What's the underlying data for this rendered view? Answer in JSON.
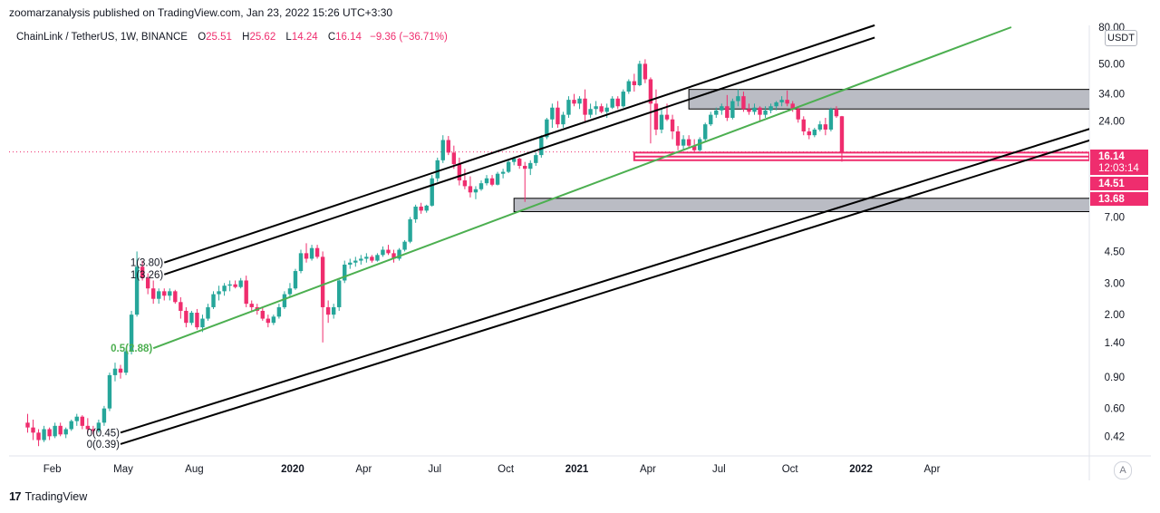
{
  "header": {
    "published": "zoomarzanalysis published on TradingView.com, Jan 23, 2022 15:26 UTC+3:30"
  },
  "legend": {
    "symbol": "ChainLink / TetherUS, 1W, BINANCE",
    "o_label": "O",
    "o_value": "25.51",
    "h_label": "H",
    "h_value": "25.62",
    "l_label": "L",
    "l_value": "14.24",
    "c_label": "C",
    "c_value": "16.14",
    "change": "−9.36 (−36.71%)"
  },
  "currency": "USDT",
  "footer": {
    "logo": "17",
    "brand": "TradingView"
  },
  "autoscale_label": "A",
  "colors": {
    "up": "#26a69a",
    "down": "#ef2d6e",
    "trend": "#4caf50",
    "channel": "#000000",
    "zone": "#b2b5be",
    "support": "#ef2d6e"
  },
  "chart_data": {
    "type": "candlestick",
    "scale": "log",
    "title": "ChainLink / TetherUS, 1W, BINANCE",
    "ylim": [
      0.35,
      80
    ],
    "y_ticks": [
      "0.42",
      "0.60",
      "0.90",
      "1.40",
      "2.00",
      "3.00",
      "4.50",
      "7.00",
      "24.00",
      "34.00",
      "50.00",
      "80.00"
    ],
    "x_ticks": [
      {
        "label": "Feb",
        "t": 4.5,
        "bold": false
      },
      {
        "label": "May",
        "t": 17.5,
        "bold": false
      },
      {
        "label": "Aug",
        "t": 30.5,
        "bold": false
      },
      {
        "label": "2020",
        "t": 48.5,
        "bold": true
      },
      {
        "label": "Apr",
        "t": 61.5,
        "bold": false
      },
      {
        "label": "Jul",
        "t": 74.5,
        "bold": false
      },
      {
        "label": "Oct",
        "t": 87.5,
        "bold": false
      },
      {
        "label": "2021",
        "t": 100.5,
        "bold": true
      },
      {
        "label": "Apr",
        "t": 113.5,
        "bold": false
      },
      {
        "label": "Jul",
        "t": 126.5,
        "bold": false
      },
      {
        "label": "Oct",
        "t": 139.5,
        "bold": false
      },
      {
        "label": "2022",
        "t": 152.5,
        "bold": true
      },
      {
        "label": "Apr",
        "t": 165.5,
        "bold": false
      }
    ],
    "candles": [
      [
        0.5,
        0.56,
        0.44,
        0.47
      ],
      [
        0.47,
        0.52,
        0.4,
        0.44
      ],
      [
        0.44,
        0.46,
        0.37,
        0.4
      ],
      [
        0.4,
        0.48,
        0.39,
        0.46
      ],
      [
        0.46,
        0.47,
        0.4,
        0.42
      ],
      [
        0.42,
        0.5,
        0.41,
        0.48
      ],
      [
        0.48,
        0.5,
        0.42,
        0.43
      ],
      [
        0.43,
        0.47,
        0.41,
        0.46
      ],
      [
        0.46,
        0.52,
        0.45,
        0.51
      ],
      [
        0.51,
        0.56,
        0.48,
        0.54
      ],
      [
        0.54,
        0.55,
        0.46,
        0.48
      ],
      [
        0.48,
        0.53,
        0.44,
        0.46
      ],
      [
        0.46,
        0.48,
        0.43,
        0.45
      ],
      [
        0.45,
        0.52,
        0.44,
        0.5
      ],
      [
        0.5,
        0.62,
        0.48,
        0.6
      ],
      [
        0.6,
        0.95,
        0.58,
        0.92
      ],
      [
        0.92,
        1.08,
        0.85,
        1.0
      ],
      [
        1.0,
        1.05,
        0.88,
        0.95
      ],
      [
        0.95,
        1.3,
        0.92,
        1.25
      ],
      [
        1.25,
        2.1,
        1.2,
        2.0
      ],
      [
        2.0,
        4.5,
        1.95,
        3.7
      ],
      [
        3.7,
        4.0,
        3.1,
        3.2
      ],
      [
        3.2,
        3.4,
        2.6,
        2.8
      ],
      [
        2.8,
        3.1,
        2.3,
        2.45
      ],
      [
        2.45,
        2.8,
        2.3,
        2.7
      ],
      [
        2.7,
        2.8,
        2.4,
        2.55
      ],
      [
        2.55,
        2.8,
        2.4,
        2.7
      ],
      [
        2.7,
        2.75,
        2.3,
        2.35
      ],
      [
        2.35,
        2.5,
        1.9,
        2.1
      ],
      [
        2.1,
        2.2,
        1.7,
        1.8
      ],
      [
        1.8,
        2.1,
        1.75,
        2.05
      ],
      [
        2.05,
        2.15,
        1.65,
        1.7
      ],
      [
        1.7,
        2.0,
        1.6,
        1.9
      ],
      [
        1.9,
        2.3,
        1.85,
        2.2
      ],
      [
        2.2,
        2.7,
        2.15,
        2.6
      ],
      [
        2.6,
        2.9,
        2.4,
        2.7
      ],
      [
        2.7,
        3.0,
        2.55,
        2.9
      ],
      [
        2.9,
        3.1,
        2.7,
        2.95
      ],
      [
        2.95,
        3.1,
        2.8,
        2.85
      ],
      [
        2.85,
        3.2,
        2.8,
        3.1
      ],
      [
        3.1,
        3.3,
        2.2,
        2.3
      ],
      [
        2.3,
        2.4,
        2.1,
        2.2
      ],
      [
        2.2,
        2.3,
        2.0,
        2.1
      ],
      [
        2.1,
        2.2,
        1.85,
        1.9
      ],
      [
        1.9,
        2.0,
        1.7,
        1.8
      ],
      [
        1.8,
        2.0,
        1.75,
        1.95
      ],
      [
        1.95,
        2.3,
        1.9,
        2.2
      ],
      [
        2.2,
        2.7,
        2.15,
        2.6
      ],
      [
        2.6,
        3.0,
        2.5,
        2.8
      ],
      [
        2.8,
        3.6,
        2.75,
        3.5
      ],
      [
        3.5,
        4.6,
        3.4,
        4.4
      ],
      [
        4.4,
        5.0,
        3.9,
        4.1
      ],
      [
        4.1,
        4.9,
        4.0,
        4.7
      ],
      [
        4.7,
        4.9,
        4.1,
        4.2
      ],
      [
        4.2,
        4.5,
        1.4,
        2.2
      ],
      [
        2.2,
        2.4,
        1.8,
        2.0
      ],
      [
        2.0,
        2.3,
        1.9,
        2.2
      ],
      [
        2.2,
        3.2,
        2.1,
        3.1
      ],
      [
        3.1,
        4.0,
        3.0,
        3.8
      ],
      [
        3.8,
        4.1,
        3.6,
        3.9
      ],
      [
        3.9,
        4.2,
        3.7,
        4.0
      ],
      [
        4.0,
        4.3,
        3.8,
        4.1
      ],
      [
        4.1,
        4.4,
        3.9,
        4.2
      ],
      [
        4.2,
        4.3,
        3.9,
        4.0
      ],
      [
        4.0,
        4.4,
        3.95,
        4.3
      ],
      [
        4.3,
        4.8,
        4.2,
        4.6
      ],
      [
        4.6,
        4.9,
        4.3,
        4.4
      ],
      [
        4.4,
        4.6,
        3.9,
        4.1
      ],
      [
        4.1,
        4.7,
        4.0,
        4.6
      ],
      [
        4.6,
        5.2,
        4.5,
        5.1
      ],
      [
        5.1,
        7.0,
        5.0,
        6.8
      ],
      [
        6.8,
        8.2,
        6.5,
        8.0
      ],
      [
        8.0,
        8.4,
        7.3,
        7.6
      ],
      [
        7.6,
        8.2,
        7.4,
        8.1
      ],
      [
        8.1,
        12.0,
        8.0,
        11.5
      ],
      [
        11.5,
        15.0,
        11.0,
        14.5
      ],
      [
        14.5,
        20.0,
        14.0,
        18.8
      ],
      [
        18.8,
        19.8,
        15.5,
        16.0
      ],
      [
        16.0,
        17.5,
        13.0,
        13.8
      ],
      [
        13.8,
        15.0,
        10.5,
        11.2
      ],
      [
        11.2,
        13.0,
        10.0,
        10.4
      ],
      [
        10.4,
        11.8,
        9.0,
        9.6
      ],
      [
        9.6,
        10.4,
        8.8,
        10.0
      ],
      [
        10.0,
        11.2,
        9.8,
        10.8
      ],
      [
        10.8,
        12.0,
        10.5,
        11.5
      ],
      [
        11.5,
        12.0,
        10.4,
        10.6
      ],
      [
        10.6,
        12.5,
        10.5,
        12.2
      ],
      [
        12.2,
        13.0,
        11.5,
        12.5
      ],
      [
        12.5,
        14.5,
        12.3,
        14.2
      ],
      [
        14.2,
        15.2,
        13.6,
        14.8
      ],
      [
        14.8,
        15.0,
        13.0,
        13.5
      ],
      [
        13.5,
        14.2,
        8.5,
        13.0
      ],
      [
        13.0,
        14.5,
        12.0,
        14.0
      ],
      [
        14.0,
        16.0,
        13.5,
        15.5
      ],
      [
        15.5,
        20.0,
        15.0,
        19.5
      ],
      [
        19.5,
        25.0,
        19.0,
        24.5
      ],
      [
        24.5,
        30.0,
        22.0,
        28.5
      ],
      [
        28.5,
        31.0,
        22.0,
        23.0
      ],
      [
        23.0,
        27.0,
        22.0,
        26.0
      ],
      [
        26.0,
        33.0,
        25.0,
        31.5
      ],
      [
        31.5,
        34.0,
        29.0,
        30.0
      ],
      [
        30.0,
        33.0,
        28.0,
        32.0
      ],
      [
        32.0,
        36.0,
        24.0,
        26.0
      ],
      [
        26.0,
        30.0,
        25.0,
        28.0
      ],
      [
        28.0,
        31.0,
        26.0,
        29.0
      ],
      [
        29.0,
        30.0,
        26.5,
        27.0
      ],
      [
        27.0,
        30.0,
        25.0,
        28.5
      ],
      [
        28.5,
        33.0,
        28.0,
        32.0
      ],
      [
        32.0,
        33.0,
        28.0,
        29.0
      ],
      [
        29.0,
        36.0,
        28.5,
        35.0
      ],
      [
        35.0,
        41.0,
        34.0,
        40.0
      ],
      [
        40.0,
        44.0,
        35.0,
        38.0
      ],
      [
        38.0,
        52.0,
        37.5,
        50.0
      ],
      [
        50.0,
        53.0,
        39.0,
        41.0
      ],
      [
        41.0,
        42.0,
        18.0,
        30.0
      ],
      [
        30.0,
        36.0,
        20.0,
        21.5
      ],
      [
        21.5,
        28.0,
        20.5,
        26.0
      ],
      [
        26.0,
        30.0,
        24.0,
        24.5
      ],
      [
        24.5,
        26.0,
        19.0,
        21.0
      ],
      [
        21.0,
        22.5,
        16.5,
        17.5
      ],
      [
        17.5,
        20.0,
        16.5,
        19.0
      ],
      [
        19.0,
        20.0,
        17.0,
        17.5
      ],
      [
        17.5,
        19.0,
        16.0,
        16.5
      ],
      [
        16.5,
        19.5,
        16.2,
        19.0
      ],
      [
        19.0,
        23.5,
        18.5,
        23.0
      ],
      [
        23.0,
        27.0,
        22.5,
        26.0
      ],
      [
        26.0,
        28.5,
        25.0,
        27.5
      ],
      [
        27.5,
        30.0,
        26.0,
        29.0
      ],
      [
        29.0,
        33.5,
        24.0,
        25.0
      ],
      [
        25.0,
        32.0,
        24.5,
        31.0
      ],
      [
        31.0,
        36.0,
        29.0,
        33.0
      ],
      [
        33.0,
        35.0,
        27.0,
        28.0
      ],
      [
        28.0,
        30.0,
        26.0,
        27.0
      ],
      [
        27.0,
        30.0,
        26.0,
        28.5
      ],
      [
        28.5,
        29.0,
        24.0,
        26.0
      ],
      [
        26.0,
        29.0,
        25.0,
        27.5
      ],
      [
        27.5,
        30.0,
        26.5,
        29.0
      ],
      [
        29.0,
        31.0,
        27.5,
        30.5
      ],
      [
        30.5,
        33.0,
        29.0,
        31.5
      ],
      [
        31.5,
        35.5,
        29.0,
        30.0
      ],
      [
        30.0,
        31.0,
        27.0,
        28.0
      ],
      [
        28.0,
        29.0,
        23.5,
        24.5
      ],
      [
        24.5,
        25.5,
        20.0,
        21.0
      ],
      [
        21.0,
        22.0,
        19.0,
        20.0
      ],
      [
        20.0,
        22.0,
        19.5,
        21.5
      ],
      [
        21.5,
        24.0,
        21.0,
        23.0
      ],
      [
        23.0,
        25.0,
        20.0,
        21.5
      ],
      [
        21.5,
        28.5,
        21.0,
        28.0
      ],
      [
        28.0,
        29.0,
        25.0,
        25.51
      ],
      [
        25.51,
        25.62,
        14.24,
        16.14
      ]
    ],
    "start_x": 30.5,
    "bar_spacing": 6.03,
    "trend_line": {
      "p1": [
        23,
        1.3
      ],
      "p2": [
        180,
        80
      ],
      "label": "0.5(2.88)"
    },
    "channel_lines": [
      {
        "p1": [
          25,
          3.9
        ],
        "p2": [
          155,
          82
        ],
        "label": "1(3.80)"
      },
      {
        "p1": [
          25,
          3.35
        ],
        "p2": [
          155,
          70
        ],
        "label": "1(3.26)"
      },
      {
        "p1": [
          17,
          0.44
        ],
        "p2": [
          195,
          22
        ],
        "label": "0(0.45)"
      },
      {
        "p1": [
          17,
          0.38
        ],
        "p2": [
          195,
          19
        ],
        "label": "0(0.39)"
      }
    ],
    "zones": [
      {
        "t1": 121,
        "t2": 195,
        "y1": 28.0,
        "y2": 36.0
      },
      {
        "t1": 89,
        "t2": 195,
        "y1": 7.5,
        "y2": 8.9
      }
    ],
    "support_lines": [
      16.0,
      14.51,
      15.2
    ],
    "price_labels": [
      {
        "value": 16.14,
        "text": "16.14",
        "sub": "12:03:14"
      },
      {
        "value": 14.51,
        "text": "14.51"
      },
      {
        "value": 13.68,
        "text": "13.68"
      }
    ],
    "last_price": 16.14
  }
}
